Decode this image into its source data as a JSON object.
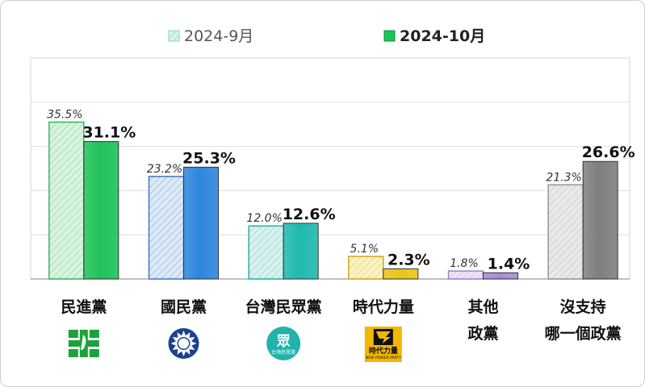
{
  "chart_data": {
    "type": "bar",
    "title": "",
    "xlabel": "",
    "ylabel": "",
    "ylim": [
      0,
      50
    ],
    "grid": true,
    "legend_position": "top",
    "categories": [
      [
        "民進黨"
      ],
      [
        "國民黨"
      ],
      [
        "台灣民眾黨"
      ],
      [
        "時代力量"
      ],
      [
        "其他",
        "政黨"
      ],
      [
        "沒支持",
        "哪一個政黨"
      ]
    ],
    "series": [
      {
        "name": "2024-9月",
        "values": [
          35.5,
          23.2,
          12.0,
          5.1,
          1.8,
          21.3
        ],
        "labels": [
          "35.5%",
          "23.2%",
          "12.0%",
          "5.1%",
          "1.8%",
          "21.3%"
        ],
        "style": "hatched-light"
      },
      {
        "name": "2024-10月",
        "values": [
          31.1,
          25.3,
          12.6,
          2.3,
          1.4,
          26.6
        ],
        "labels": [
          "31.1%",
          "25.3%",
          "12.6%",
          "2.3%",
          "1.4%",
          "26.6%"
        ],
        "style": "solid"
      }
    ],
    "category_colors": [
      "#1fc25a",
      "#2d86dd",
      "#1fb9b0",
      "#e9c51a",
      "#a98bd9",
      "#7f7f7f"
    ],
    "light_fill_colors": [
      "#d8f3df",
      "#dce9f6",
      "#d6f1ee",
      "#fbf2c4",
      "#ece3f6",
      "#e9e9e9"
    ],
    "light_stroke_colors": [
      "#2bb257",
      "#3a70b8",
      "#22a9a0",
      "#c9a416",
      "#9a7cc6",
      "#8f8f8f"
    ],
    "party_logos": [
      {
        "icon": "dpp-logo-icon",
        "color": "#1aa33b"
      },
      {
        "icon": "kmt-logo-icon",
        "color": "#1d3f8f"
      },
      {
        "icon": "tpp-logo-icon",
        "color": "#20b3ad",
        "text": "眾",
        "subtext": "台灣民眾黨"
      },
      {
        "icon": "npp-logo-icon",
        "color": "#f2b705",
        "text": "時代力量",
        "subtext": "NEW POWER PARTY"
      }
    ]
  }
}
